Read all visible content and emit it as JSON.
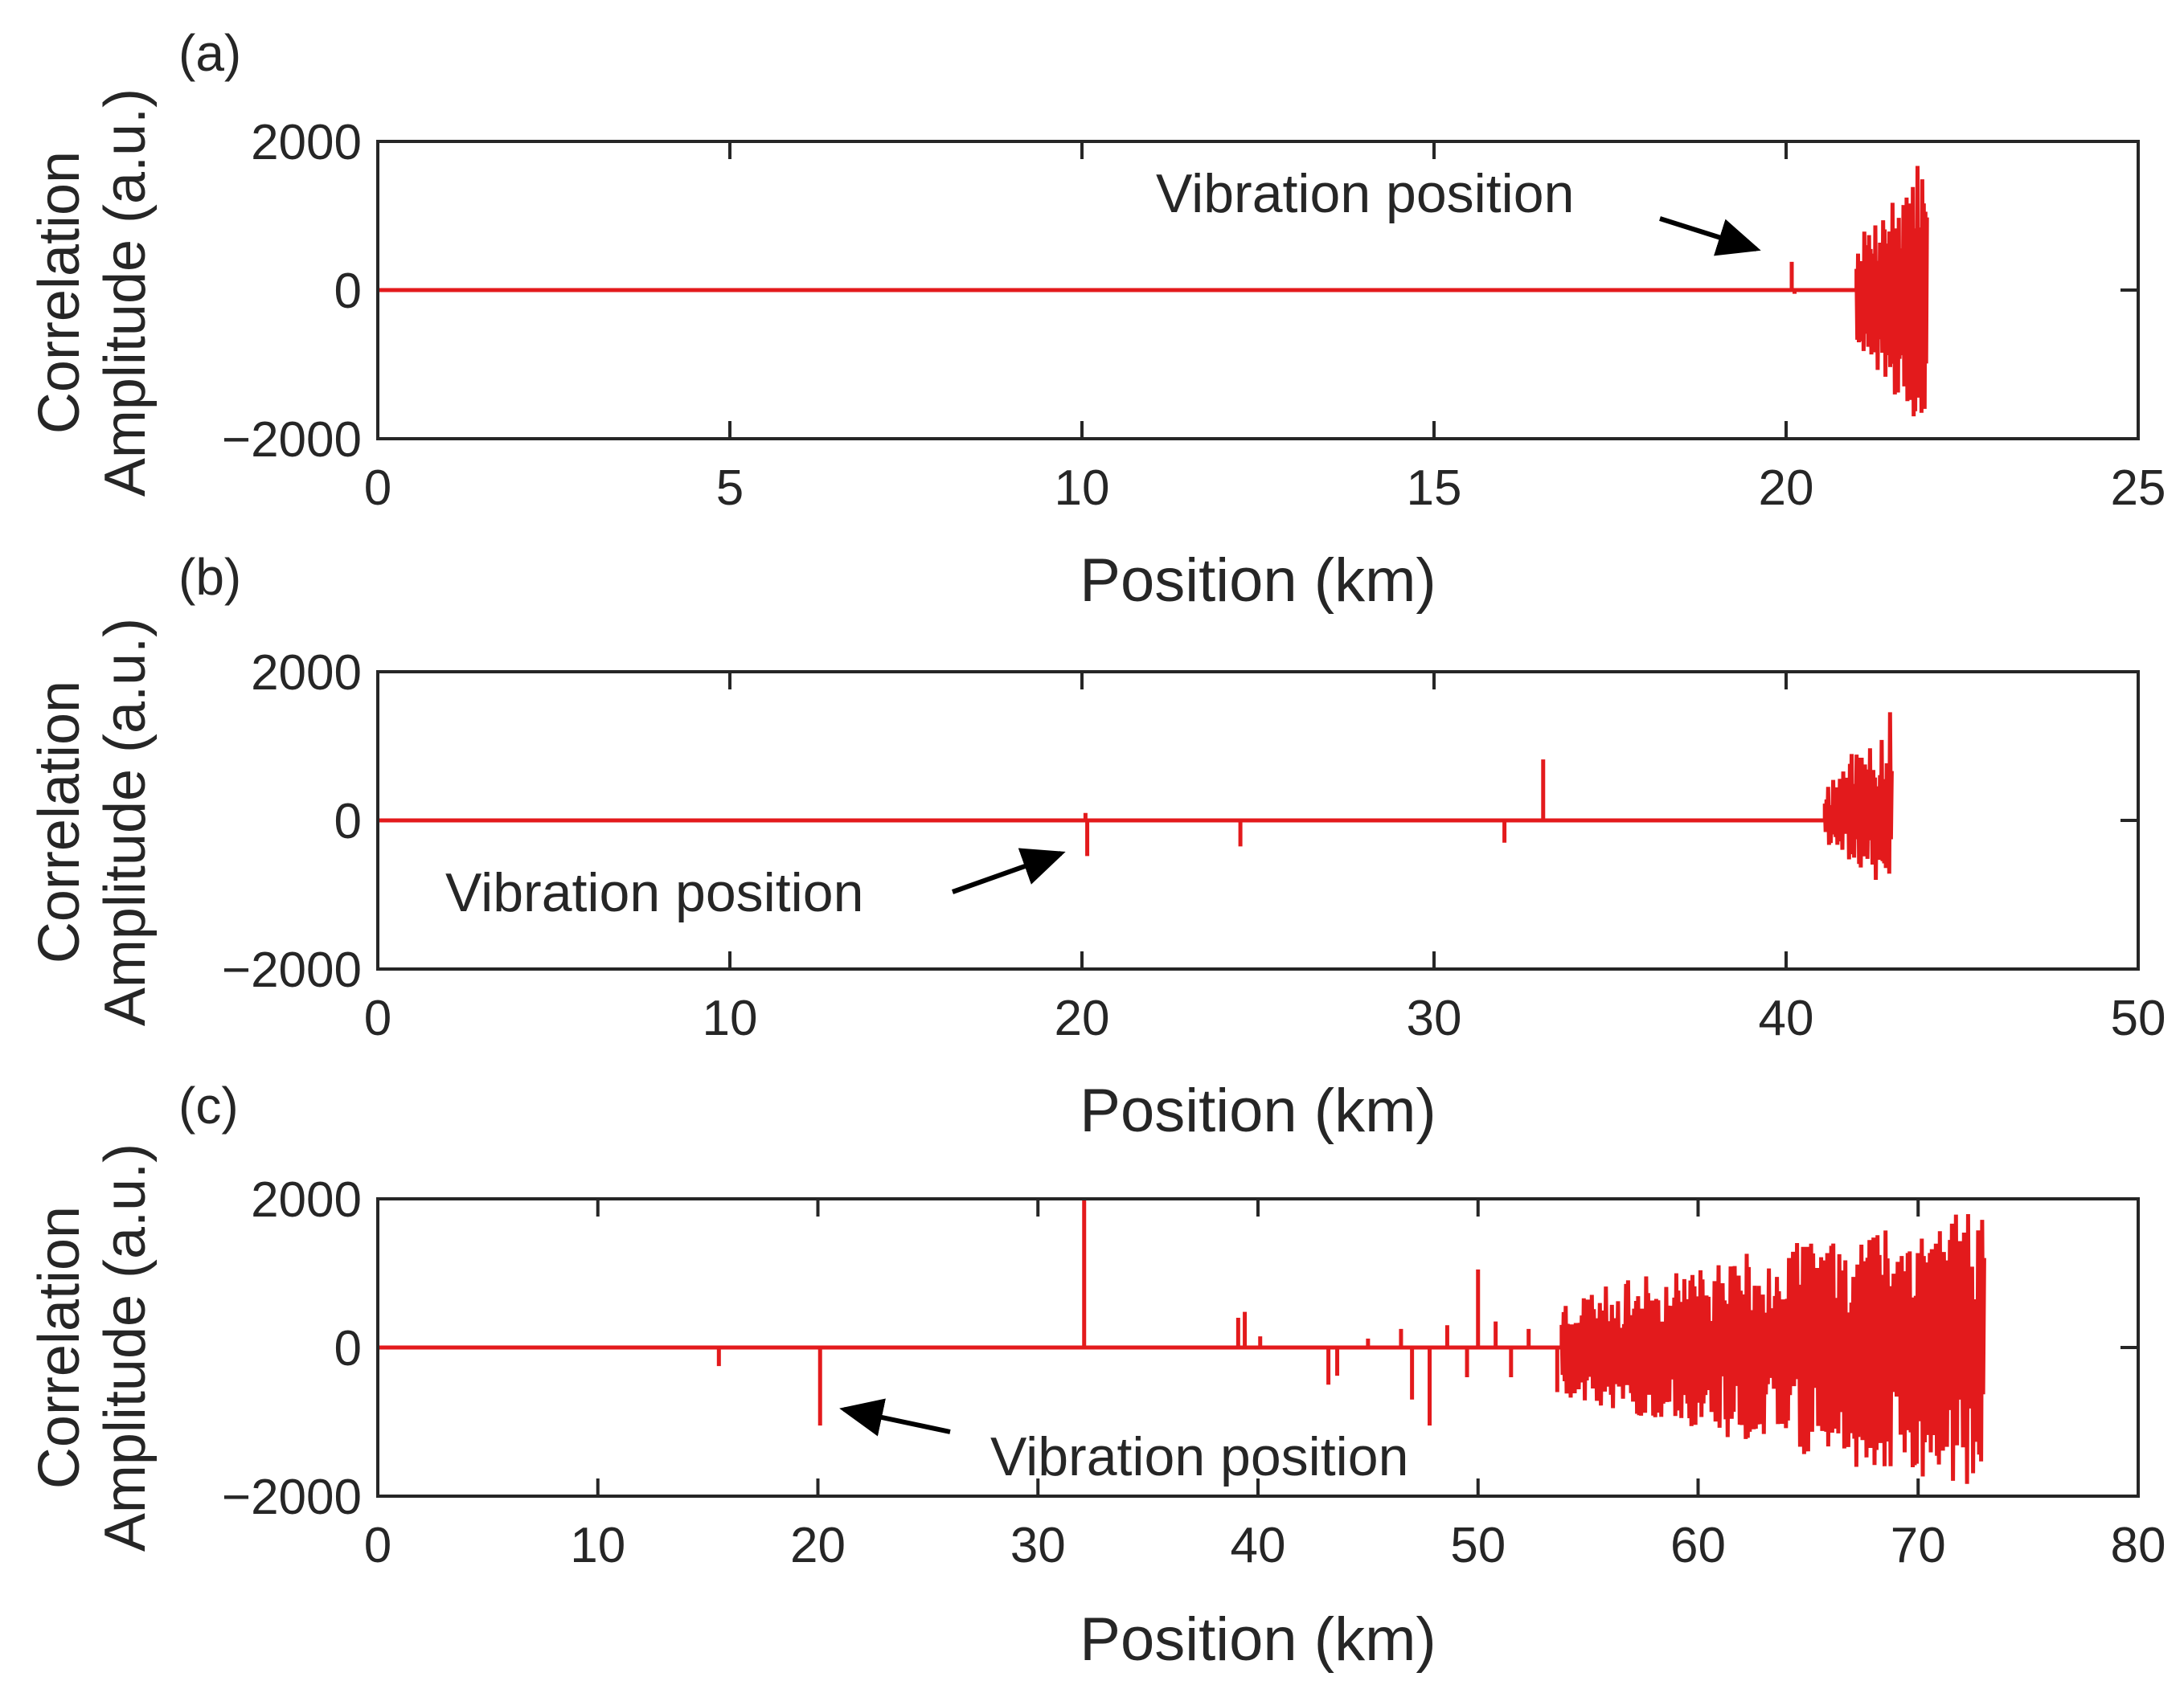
{
  "figure": {
    "panels": [
      "(a)",
      "(b)",
      "(c)"
    ]
  },
  "colors": {
    "signal": "#e31a1c",
    "axis": "#262626",
    "arrow": "#000000"
  },
  "chart_data": [
    {
      "type": "line",
      "panel_label": "(a)",
      "title": "",
      "xlabel": "Position (km)",
      "ylabel_line1": "Correlation",
      "ylabel_line2": "Amplitude (a.u.)",
      "xlim": [
        0,
        25
      ],
      "ylim": [
        -2000,
        2000
      ],
      "xticks": [
        "0",
        "5",
        "10",
        "15",
        "20",
        "25"
      ],
      "xtick_values": [
        0,
        5,
        10,
        15,
        20,
        25
      ],
      "yticks": [
        "2000",
        "0",
        "−2000"
      ],
      "ytick_values": [
        2000,
        0,
        -2000
      ],
      "annotation": {
        "text": "Vibration position",
        "target_x": 20.1,
        "target_y": 350
      },
      "series": [
        {
          "name": "correlation",
          "spikes": [
            [
              20.08,
              380
            ],
            [
              20.12,
              -50
            ]
          ],
          "burst": {
            "start": 21.0,
            "end": 22.0,
            "count": 90,
            "envelope": [
              1900,
              -2000
            ],
            "seed": 7
          }
        }
      ]
    },
    {
      "type": "line",
      "panel_label": "(b)",
      "title": "",
      "xlabel": "Position (km)",
      "ylabel_line1": "Correlation",
      "ylabel_line2": "Amplitude (a.u.)",
      "xlim": [
        0,
        50
      ],
      "ylim": [
        -2000,
        2000
      ],
      "xticks": [
        "0",
        "10",
        "20",
        "30",
        "40",
        "50"
      ],
      "xtick_values": [
        0,
        10,
        20,
        30,
        40,
        50
      ],
      "yticks": [
        "2000",
        "0",
        "−2000"
      ],
      "ytick_values": [
        2000,
        0,
        -2000
      ],
      "annotation": {
        "text": "Vibration position",
        "target_x": 20.0,
        "target_y": -450
      },
      "series": [
        {
          "name": "correlation",
          "spikes": [
            [
              20.1,
              100
            ],
            [
              20.15,
              -480
            ],
            [
              24.5,
              -350
            ],
            [
              32.0,
              -300
            ],
            [
              33.1,
              820
            ]
          ],
          "burst": {
            "start": 41.1,
            "end": 43.0,
            "count": 80,
            "envelope": [
              1500,
              -950
            ],
            "seed": 11
          }
        }
      ]
    },
    {
      "type": "line",
      "panel_label": "(c)",
      "title": "",
      "xlabel": "Position (km)",
      "ylabel_line1": "Correlation",
      "ylabel_line2": "Amplitude (a.u.)",
      "xlim": [
        0,
        80
      ],
      "ylim": [
        -2000,
        2000
      ],
      "xticks": [
        "0",
        "10",
        "20",
        "30",
        "40",
        "50",
        "60",
        "70",
        "80"
      ],
      "xtick_values": [
        0,
        10,
        20,
        30,
        40,
        50,
        60,
        70,
        80
      ],
      "yticks": [
        "2000",
        "0",
        "−2000"
      ],
      "ytick_values": [
        2000,
        0,
        -2000
      ],
      "annotation": {
        "text": "Vibration position",
        "target_x": 20.5,
        "target_y": -900
      },
      "series": [
        {
          "name": "correlation",
          "spikes": [
            [
              15.5,
              -250
            ],
            [
              20.1,
              -1050
            ],
            [
              32.1,
              2000
            ],
            [
              39.1,
              400
            ],
            [
              39.4,
              480
            ],
            [
              40.1,
              150
            ],
            [
              43.2,
              -500
            ],
            [
              43.6,
              -380
            ],
            [
              45.0,
              120
            ],
            [
              46.5,
              250
            ],
            [
              47.0,
              -700
            ],
            [
              47.8,
              -1050
            ],
            [
              48.6,
              300
            ],
            [
              49.5,
              -400
            ],
            [
              50.0,
              1050
            ],
            [
              50.8,
              350
            ],
            [
              51.5,
              -400
            ],
            [
              52.3,
              250
            ],
            [
              53.6,
              -600
            ]
          ],
          "burst": {
            "start": 53.8,
            "end": 73.0,
            "count": 420,
            "envelope": [
              2000,
              -2000
            ],
            "seed": 23
          }
        }
      ]
    }
  ]
}
